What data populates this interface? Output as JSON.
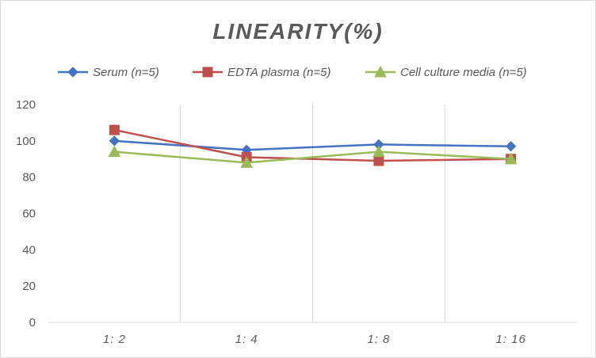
{
  "chart_data": {
    "type": "line",
    "title": "LINEARITY(%)",
    "xlabel": "",
    "ylabel": "",
    "categories": [
      "1:2",
      "1:4",
      "1:8",
      "1:16"
    ],
    "ylim": [
      0,
      120
    ],
    "yticks": [
      0,
      20,
      40,
      60,
      80,
      100,
      120
    ],
    "grid": "vertical category separators",
    "legend_position": "top",
    "series": [
      {
        "name": "Serum (n=5)",
        "values": [
          100,
          95,
          98,
          97
        ],
        "color": "#4472c4",
        "marker": "diamond"
      },
      {
        "name": "EDTA plasma (n=5)",
        "values": [
          106,
          91,
          89,
          90
        ],
        "color": "#c0504d",
        "marker": "square"
      },
      {
        "name": "Cell culture media (n=5)",
        "values": [
          94,
          88,
          94,
          90
        ],
        "color": "#9bbb59",
        "marker": "triangle"
      }
    ]
  }
}
